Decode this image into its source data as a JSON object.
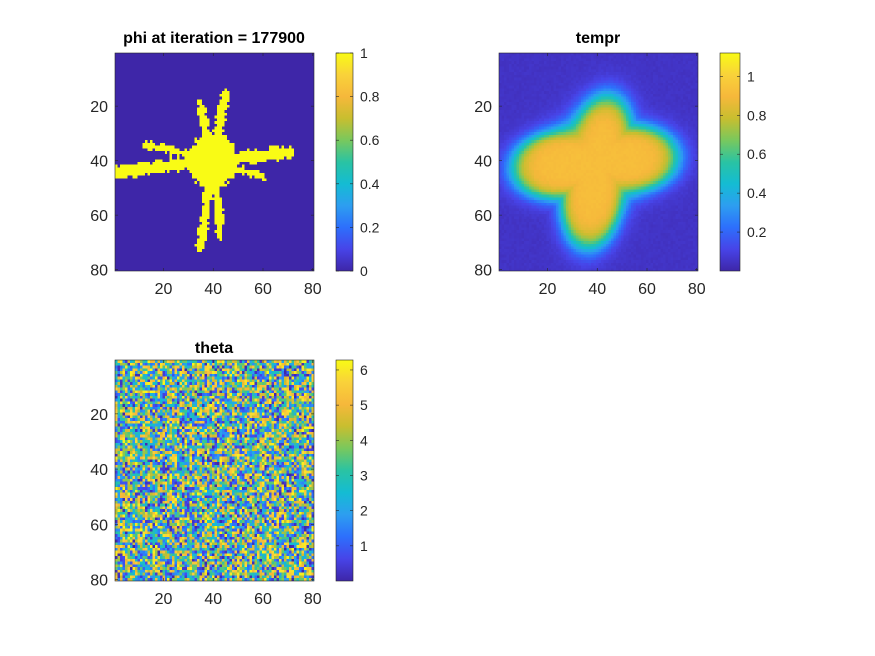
{
  "figure": {
    "background": "#ffffff"
  },
  "chart_data": [
    {
      "type": "heatmap",
      "title": "phi at iteration = 177900",
      "render": "dendrite-binary",
      "grid_n": 80,
      "xlim": [
        0.5,
        80.5
      ],
      "ylim": [
        0.5,
        80.5
      ],
      "y_reversed": true,
      "xticks": [
        20,
        40,
        60,
        80
      ],
      "yticks": [
        20,
        40,
        60,
        80
      ],
      "colorbar": {
        "range": [
          0,
          1
        ],
        "ticks": [
          0,
          0.2,
          0.4,
          0.6,
          0.8,
          1
        ],
        "tick_labels": [
          "0",
          "0.2",
          "0.4",
          "0.6",
          "0.8",
          "1"
        ]
      },
      "structure": {
        "center": [
          40,
          40
        ],
        "core_radius": 10,
        "arms": [
          {
            "tip": [
              2,
              44
            ],
            "width": 2.2
          },
          {
            "tip": [
              70,
              37
            ],
            "width": 2.2
          },
          {
            "tip": [
              45,
              16
            ],
            "width": 1.8
          },
          {
            "tip": [
              35,
              20
            ],
            "width": 1.6
          },
          {
            "tip": [
              35,
              71
            ],
            "width": 1.8
          },
          {
            "tip": [
              43,
              67
            ],
            "width": 1.4
          },
          {
            "tip": [
              13,
              34
            ],
            "width": 1.4
          },
          {
            "tip": [
              60,
              46
            ],
            "width": 1.4
          }
        ]
      }
    },
    {
      "type": "heatmap",
      "title": "tempr",
      "render": "dendrite-smooth",
      "grid_n": 80,
      "xlim": [
        0.5,
        80.5
      ],
      "ylim": [
        0.5,
        80.5
      ],
      "y_reversed": true,
      "xticks": [
        20,
        40,
        60,
        80
      ],
      "yticks": [
        20,
        40,
        60,
        80
      ],
      "value_range": [
        0,
        1.12
      ],
      "colorbar": {
        "range": [
          0,
          1.12
        ],
        "ticks": [
          0.2,
          0.4,
          0.6,
          0.8,
          1
        ],
        "tick_labels": [
          "0.2",
          "0.4",
          "0.6",
          "0.8",
          "1"
        ]
      },
      "structure": {
        "center": [
          40,
          40
        ],
        "plateau_value": 0.92,
        "edge_value": 0.05,
        "lobes": [
          {
            "direction": [
              -1,
              0.1
            ],
            "extent": 34
          },
          {
            "direction": [
              1,
              -0.05
            ],
            "extent": 32
          },
          {
            "direction": [
              0.25,
              -1
            ],
            "extent": 24
          },
          {
            "direction": [
              -0.15,
              1
            ],
            "extent": 32
          }
        ],
        "base_radius": 16
      }
    },
    {
      "type": "heatmap",
      "title": "theta",
      "render": "random-noise",
      "grid_n": 80,
      "xlim": [
        0.5,
        80.5
      ],
      "ylim": [
        0.5,
        80.5
      ],
      "y_reversed": true,
      "xticks": [
        20,
        40,
        60,
        80
      ],
      "yticks": [
        20,
        40,
        60,
        80
      ],
      "value_range": [
        0,
        6.2832
      ],
      "colorbar": {
        "range": [
          0,
          6.2832
        ],
        "ticks": [
          1,
          2,
          3,
          4,
          5,
          6
        ],
        "tick_labels": [
          "1",
          "2",
          "3",
          "4",
          "5",
          "6"
        ]
      }
    }
  ],
  "colormap": {
    "name": "parula",
    "stops": [
      "#3e26a8",
      "#4744e8",
      "#2d6ffc",
      "#2d9ef0",
      "#14bcd3",
      "#2ac3a3",
      "#79c85d",
      "#c8be2f",
      "#f6b83b",
      "#f9d23a",
      "#f9fb15"
    ]
  }
}
